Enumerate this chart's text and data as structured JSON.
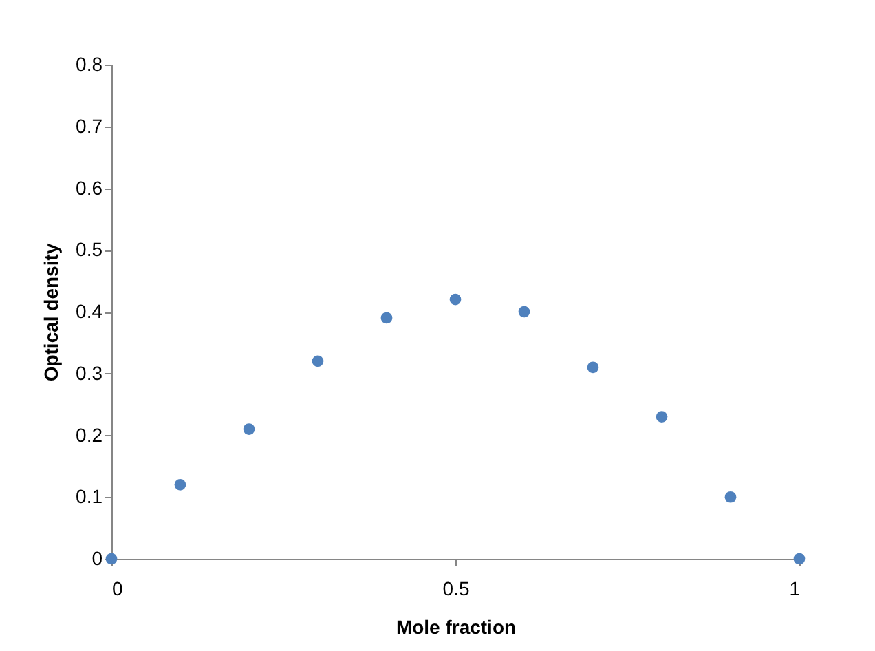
{
  "chart_data": {
    "type": "scatter",
    "xlabel": "Mole fraction",
    "ylabel": "Optical density",
    "x": [
      0,
      0.1,
      0.2,
      0.3,
      0.4,
      0.5,
      0.6,
      0.7,
      0.8,
      0.9,
      1
    ],
    "series": [
      {
        "color": "#4f81bd",
        "values": [
          0,
          0.12,
          0.21,
          0.32,
          0.39,
          0.42,
          0.4,
          0.31,
          0.23,
          0.1,
          0
        ]
      }
    ],
    "xlim": [
      0,
      1
    ],
    "xticks": [
      0,
      0.5,
      1
    ],
    "ylim": [
      0,
      0.8
    ],
    "yticks": [
      0,
      0.1,
      0.2,
      0.3,
      0.4,
      0.5,
      0.6,
      0.7,
      0.8
    ],
    "grid": false,
    "marker": "circle"
  }
}
